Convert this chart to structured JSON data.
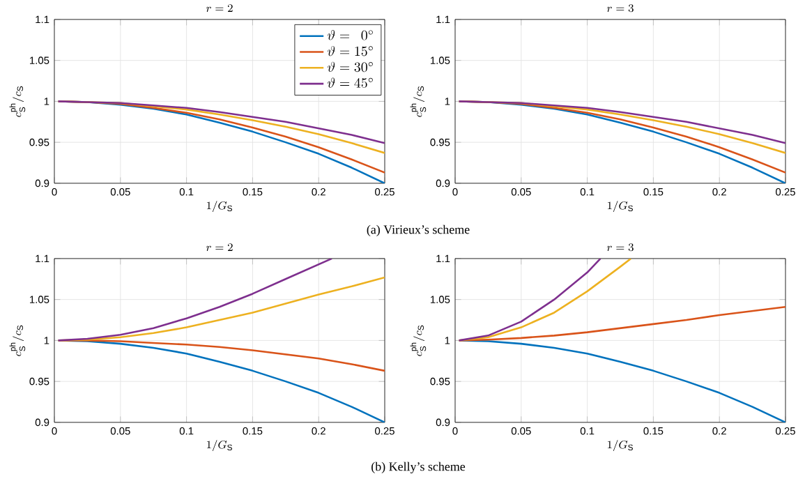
{
  "chart_data": [
    {
      "type": "line",
      "title": "r = 2",
      "xlabel": "1/G_{\\mathrm{S}}",
      "ylabel": "c_{\\mathrm{S}}^{\\mathrm{ph}}/c_{\\mathrm{S}}",
      "xlim": [
        0,
        0.25
      ],
      "ylim": [
        0.9,
        1.1
      ],
      "xticks": [
        0,
        0.05,
        0.1,
        0.15,
        0.2,
        0.25
      ],
      "yticks": [
        0.9,
        0.95,
        1,
        1.05,
        1.1
      ],
      "grid": true,
      "legend": "top right",
      "line_style": "solid",
      "annotations": [
        "(a) Virieux’s scheme"
      ],
      "series": [
        {
          "name": "\\vartheta = \\phantom{1}0^\\circ",
          "color": "#0072bd",
          "x": [
            0.003,
            0.025,
            0.05,
            0.075,
            0.1,
            0.125,
            0.15,
            0.175,
            0.2,
            0.225,
            0.25
          ],
          "values": [
            1,
            0.999,
            0.996,
            0.991,
            0.984,
            0.974,
            0.963,
            0.95,
            0.936,
            0.919,
            0.9
          ]
        },
        {
          "name": "\\vartheta = 15^\\circ",
          "color": "#d95319",
          "x": [
            0.003,
            0.025,
            0.05,
            0.075,
            0.1,
            0.125,
            0.15,
            0.175,
            0.2,
            0.225,
            0.25
          ],
          "values": [
            1,
            0.999,
            0.997,
            0.992,
            0.986,
            0.978,
            0.968,
            0.957,
            0.944,
            0.929,
            0.913
          ]
        },
        {
          "name": "\\vartheta = 30^\\circ",
          "color": "#edb120",
          "x": [
            0.003,
            0.025,
            0.05,
            0.075,
            0.1,
            0.125,
            0.15,
            0.175,
            0.2,
            0.225,
            0.25
          ],
          "values": [
            1,
            0.999,
            0.998,
            0.994,
            0.99,
            0.984,
            0.977,
            0.969,
            0.96,
            0.949,
            0.937
          ]
        },
        {
          "name": "\\vartheta = 45^\\circ",
          "color": "#7e2f8e",
          "x": [
            0.003,
            0.025,
            0.05,
            0.075,
            0.1,
            0.125,
            0.15,
            0.175,
            0.2,
            0.225,
            0.25
          ],
          "values": [
            1,
            0.999,
            0.998,
            0.995,
            0.992,
            0.987,
            0.981,
            0.975,
            0.967,
            0.959,
            0.949
          ]
        }
      ]
    },
    {
      "type": "line",
      "title": "r = 3",
      "xlabel": "1/G_{\\mathrm{S}}",
      "ylabel": "c_{\\mathrm{S}}^{\\mathrm{ph}}/c_{\\mathrm{S}}",
      "xlim": [
        0,
        0.25
      ],
      "ylim": [
        0.9,
        1.1
      ],
      "xticks": [
        0,
        0.05,
        0.1,
        0.15,
        0.2,
        0.25
      ],
      "yticks": [
        0.9,
        0.95,
        1,
        1.05,
        1.1
      ],
      "grid": true,
      "line_style": "solid",
      "series": [
        {
          "color": "#0072bd",
          "x": [
            0.003,
            0.025,
            0.05,
            0.075,
            0.1,
            0.125,
            0.15,
            0.175,
            0.2,
            0.225,
            0.25
          ],
          "values": [
            1,
            0.999,
            0.996,
            0.991,
            0.984,
            0.974,
            0.963,
            0.95,
            0.936,
            0.919,
            0.9
          ]
        },
        {
          "color": "#d95319",
          "x": [
            0.003,
            0.025,
            0.05,
            0.075,
            0.1,
            0.125,
            0.15,
            0.175,
            0.2,
            0.225,
            0.25
          ],
          "values": [
            1,
            0.999,
            0.997,
            0.992,
            0.986,
            0.978,
            0.968,
            0.957,
            0.944,
            0.929,
            0.913
          ]
        },
        {
          "color": "#edb120",
          "x": [
            0.003,
            0.025,
            0.05,
            0.075,
            0.1,
            0.125,
            0.15,
            0.175,
            0.2,
            0.225,
            0.25
          ],
          "values": [
            1,
            0.999,
            0.998,
            0.994,
            0.99,
            0.984,
            0.977,
            0.969,
            0.96,
            0.949,
            0.937
          ]
        },
        {
          "color": "#7e2f8e",
          "x": [
            0.003,
            0.025,
            0.05,
            0.075,
            0.1,
            0.125,
            0.15,
            0.175,
            0.2,
            0.225,
            0.25
          ],
          "values": [
            1,
            0.999,
            0.998,
            0.995,
            0.992,
            0.987,
            0.981,
            0.975,
            0.967,
            0.959,
            0.949
          ]
        }
      ]
    },
    {
      "type": "line",
      "title": "r = 2",
      "xlabel": "1/G_{\\mathrm{S}}",
      "ylabel": "c_{\\mathrm{S}}^{\\mathrm{ph}}/c_{\\mathrm{S}}",
      "xlim": [
        0,
        0.25
      ],
      "ylim": [
        0.9,
        1.1
      ],
      "xticks": [
        0,
        0.05,
        0.1,
        0.15,
        0.2,
        0.25
      ],
      "yticks": [
        0.9,
        0.95,
        1,
        1.05,
        1.1
      ],
      "grid": true,
      "line_style": "solid",
      "annotations": [
        "(b) Kelly’s scheme"
      ],
      "series": [
        {
          "color": "#0072bd",
          "x": [
            0.003,
            0.025,
            0.05,
            0.075,
            0.1,
            0.125,
            0.15,
            0.175,
            0.2,
            0.225,
            0.25
          ],
          "values": [
            1,
            0.999,
            0.996,
            0.991,
            0.984,
            0.974,
            0.963,
            0.95,
            0.936,
            0.919,
            0.9
          ]
        },
        {
          "color": "#d95319",
          "x": [
            0.003,
            0.025,
            0.05,
            0.075,
            0.1,
            0.125,
            0.15,
            0.175,
            0.2,
            0.225,
            0.25
          ],
          "values": [
            1,
            1,
            0.999,
            0.997,
            0.995,
            0.992,
            0.988,
            0.983,
            0.978,
            0.971,
            0.963
          ]
        },
        {
          "color": "#edb120",
          "x": [
            0.003,
            0.025,
            0.05,
            0.075,
            0.1,
            0.125,
            0.15,
            0.175,
            0.2,
            0.225,
            0.25
          ],
          "values": [
            1,
            1.001,
            1.004,
            1.009,
            1.016,
            1.025,
            1.034,
            1.045,
            1.056,
            1.066,
            1.077
          ]
        },
        {
          "color": "#7e2f8e",
          "x": [
            0.003,
            0.025,
            0.05,
            0.075,
            0.1,
            0.125,
            0.15,
            0.175,
            0.21
          ],
          "values": [
            1,
            1.002,
            1.007,
            1.015,
            1.027,
            1.041,
            1.057,
            1.075,
            1.1
          ]
        }
      ]
    },
    {
      "type": "line",
      "title": "r = 3",
      "xlabel": "1/G_{\\mathrm{S}}",
      "ylabel": "c_{\\mathrm{S}}^{\\mathrm{ph}}/c_{\\mathrm{S}}",
      "xlim": [
        0,
        0.25
      ],
      "ylim": [
        0.9,
        1.1
      ],
      "xticks": [
        0,
        0.05,
        0.1,
        0.15,
        0.2,
        0.25
      ],
      "yticks": [
        0.9,
        0.95,
        1,
        1.05,
        1.1
      ],
      "grid": true,
      "line_style": "solid",
      "series": [
        {
          "color": "#0072bd",
          "x": [
            0.003,
            0.025,
            0.05,
            0.075,
            0.1,
            0.125,
            0.15,
            0.175,
            0.2,
            0.225,
            0.25
          ],
          "values": [
            1,
            0.999,
            0.996,
            0.991,
            0.984,
            0.974,
            0.963,
            0.95,
            0.936,
            0.919,
            0.9
          ]
        },
        {
          "color": "#d95319",
          "x": [
            0.003,
            0.025,
            0.05,
            0.075,
            0.1,
            0.125,
            0.15,
            0.175,
            0.2,
            0.225,
            0.25
          ],
          "values": [
            1,
            1.001,
            1.003,
            1.006,
            1.01,
            1.015,
            1.02,
            1.025,
            1.031,
            1.036,
            1.041
          ]
        },
        {
          "color": "#edb120",
          "x": [
            0.003,
            0.025,
            0.05,
            0.075,
            0.1,
            0.125,
            0.133
          ],
          "values": [
            1,
            1.004,
            1.016,
            1.034,
            1.06,
            1.09,
            1.1
          ]
        },
        {
          "color": "#7e2f8e",
          "x": [
            0.003,
            0.025,
            0.05,
            0.075,
            0.1,
            0.11
          ],
          "values": [
            1,
            1.006,
            1.023,
            1.05,
            1.083,
            1.1
          ]
        }
      ]
    }
  ]
}
